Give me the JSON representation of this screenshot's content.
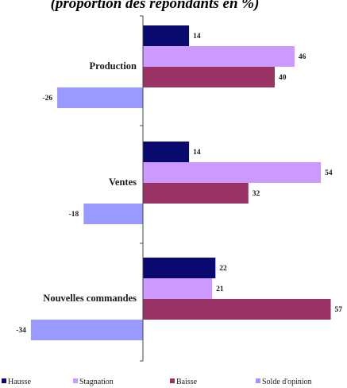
{
  "chart_data": {
    "type": "bar",
    "orientation": "horizontal",
    "title": "(proportion des répondants en %)",
    "categories": [
      "Production",
      "Ventes",
      "Nouvelles commandes"
    ],
    "series": [
      {
        "name": "Hausse",
        "values": [
          14,
          14,
          22
        ],
        "color": "#0a0a6e"
      },
      {
        "name": "Stagnation",
        "values": [
          46,
          54,
          21
        ],
        "color": "#cc99ff"
      },
      {
        "name": "Baisse",
        "values": [
          40,
          32,
          57
        ],
        "color": "#993366"
      },
      {
        "name": "Solde d'opinion",
        "values": [
          -26,
          -18,
          -34
        ],
        "color": "#9999ff"
      }
    ],
    "legend_position": "bottom",
    "grid": false
  }
}
